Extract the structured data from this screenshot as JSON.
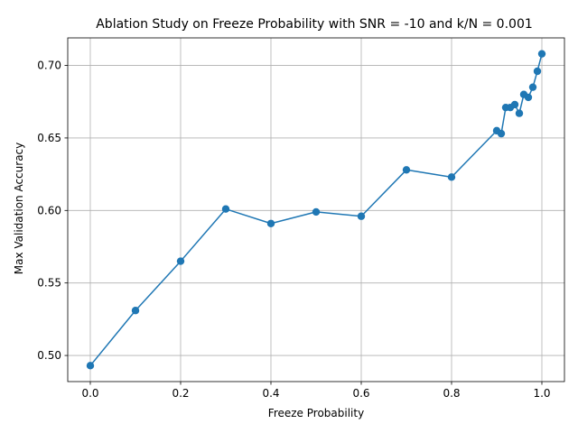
{
  "chart_data": {
    "type": "line",
    "title": "Ablation Study on Freeze Probability with SNR = -10 and k/N = 0.001",
    "xlabel": "Freeze Probability",
    "ylabel": "Max Validation Accuracy",
    "xlim": [
      -0.05,
      1.05
    ],
    "ylim": [
      0.482,
      0.719
    ],
    "x_ticks": [
      0.0,
      0.2,
      0.4,
      0.6,
      0.8,
      1.0
    ],
    "x_tick_labels": [
      "0.0",
      "0.2",
      "0.4",
      "0.6",
      "0.8",
      "1.0"
    ],
    "y_ticks": [
      0.5,
      0.55,
      0.6,
      0.65,
      0.7
    ],
    "y_tick_labels": [
      "0.50",
      "0.55",
      "0.60",
      "0.65",
      "0.70"
    ],
    "grid": true,
    "series": [
      {
        "color": "#1f77b4",
        "marker": "circle",
        "x": [
          0.0,
          0.1,
          0.2,
          0.3,
          0.4,
          0.5,
          0.6,
          0.7,
          0.8,
          0.9,
          0.91,
          0.92,
          0.93,
          0.94,
          0.95,
          0.96,
          0.97,
          0.98,
          0.99,
          1.0
        ],
        "y": [
          0.493,
          0.531,
          0.565,
          0.601,
          0.591,
          0.599,
          0.596,
          0.628,
          0.623,
          0.655,
          0.653,
          0.671,
          0.671,
          0.673,
          0.667,
          0.68,
          0.678,
          0.685,
          0.696,
          0.708
        ]
      }
    ]
  }
}
